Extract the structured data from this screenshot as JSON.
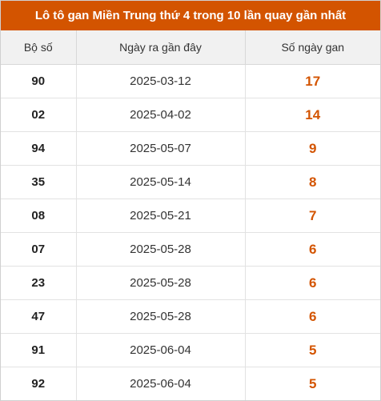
{
  "title": "Lô tô gan Miền Trung thứ 4 trong 10 lần quay gần nhất",
  "colors": {
    "header_bg": "#d35400",
    "gan_value": "#d35400"
  },
  "table": {
    "headers": [
      "Bộ số",
      "Ngày ra gần đây",
      "Số ngày gan"
    ],
    "rows": [
      {
        "num": "90",
        "date": "2025-03-12",
        "gan": "17"
      },
      {
        "num": "02",
        "date": "2025-04-02",
        "gan": "14"
      },
      {
        "num": "94",
        "date": "2025-05-07",
        "gan": "9"
      },
      {
        "num": "35",
        "date": "2025-05-14",
        "gan": "8"
      },
      {
        "num": "08",
        "date": "2025-05-21",
        "gan": "7"
      },
      {
        "num": "07",
        "date": "2025-05-28",
        "gan": "6"
      },
      {
        "num": "23",
        "date": "2025-05-28",
        "gan": "6"
      },
      {
        "num": "47",
        "date": "2025-05-28",
        "gan": "6"
      },
      {
        "num": "91",
        "date": "2025-06-04",
        "gan": "5"
      },
      {
        "num": "92",
        "date": "2025-06-04",
        "gan": "5"
      }
    ]
  }
}
